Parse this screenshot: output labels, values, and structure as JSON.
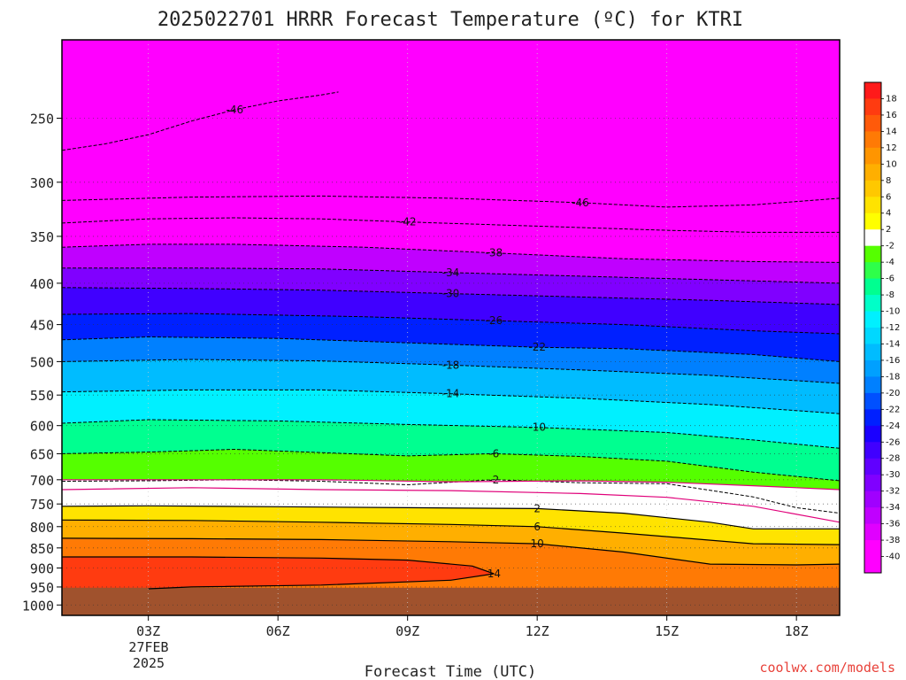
{
  "chart_data": {
    "type": "heatmap",
    "title": "2025022701 HRRR Forecast Temperature (ºC) for KTRI",
    "xlabel": "Forecast Time (UTC)",
    "ylabel": "",
    "x_ticks": [
      "03Z",
      "06Z",
      "09Z",
      "12Z",
      "15Z",
      "18Z"
    ],
    "x_tick_hours": [
      3,
      6,
      9,
      12,
      15,
      18
    ],
    "x_range_hours": [
      1,
      19
    ],
    "date_label": [
      "27FEB",
      "2025"
    ],
    "y_ticks": [
      250,
      300,
      350,
      400,
      450,
      500,
      550,
      600,
      650,
      700,
      750,
      800,
      850,
      900,
      950,
      1000
    ],
    "y_range_hPa": [
      200,
      1030
    ],
    "y_scale": "log",
    "grid": "dotted",
    "colorbar_levels": [
      18,
      16,
      14,
      12,
      10,
      8,
      6,
      4,
      2,
      -2,
      -4,
      -6,
      -8,
      -10,
      -12,
      -14,
      -16,
      -18,
      -20,
      -22,
      -24,
      -26,
      -28,
      -30,
      -32,
      -34,
      -36,
      -38,
      -40
    ],
    "colorbar_colors": [
      "#ff1a1a",
      "#ff3b10",
      "#ff5a0a",
      "#ff7a05",
      "#ff9500",
      "#ffaf00",
      "#ffc800",
      "#ffe300",
      "#ffff00",
      "#ffffff",
      "#55ff00",
      "#2eff4a",
      "#00ff90",
      "#00ffc8",
      "#00f0ff",
      "#00d8ff",
      "#00bcff",
      "#00a0ff",
      "#0080ff",
      "#0050ff",
      "#0020ff",
      "#1a00ff",
      "#4000ff",
      "#6000ff",
      "#8000ff",
      "#a000ff",
      "#c000ff",
      "#e000ff",
      "#ff00ff"
    ],
    "isotherms": [
      {
        "value": -46,
        "label": "46",
        "points": [
          [
            1,
            274
          ],
          [
            2,
            269
          ],
          [
            3,
            262
          ],
          [
            4,
            252
          ],
          [
            5,
            244
          ],
          [
            6,
            238
          ],
          [
            7,
            234
          ],
          [
            7.4,
            232
          ]
        ]
      },
      {
        "value": -46,
        "label": "46",
        "points": [
          [
            1,
            316
          ],
          [
            4,
            313
          ],
          [
            7,
            312
          ],
          [
            10,
            314
          ],
          [
            13,
            318
          ],
          [
            15,
            322
          ],
          [
            17,
            320
          ],
          [
            19,
            314
          ]
        ]
      },
      {
        "value": -42,
        "label": "42",
        "points": [
          [
            1,
            337
          ],
          [
            3,
            333
          ],
          [
            5,
            332
          ],
          [
            7,
            333
          ],
          [
            9,
            336
          ],
          [
            12,
            340
          ],
          [
            15,
            344
          ],
          [
            17,
            346
          ],
          [
            19,
            346
          ]
        ]
      },
      {
        "value": -38,
        "label": "38",
        "points": [
          [
            1,
            361
          ],
          [
            3,
            358
          ],
          [
            5,
            358
          ],
          [
            8,
            361
          ],
          [
            11,
            367
          ],
          [
            14,
            373
          ],
          [
            17,
            376
          ],
          [
            19,
            377
          ]
        ]
      },
      {
        "value": -34,
        "label": "34",
        "points": [
          [
            1,
            383
          ],
          [
            4,
            383
          ],
          [
            7,
            384
          ],
          [
            10,
            388
          ],
          [
            13,
            392
          ],
          [
            16,
            396
          ],
          [
            19,
            400
          ]
        ]
      },
      {
        "value": -30,
        "label": "30",
        "points": [
          [
            1,
            405
          ],
          [
            4,
            406
          ],
          [
            7,
            408
          ],
          [
            10,
            412
          ],
          [
            13,
            416
          ],
          [
            16,
            420
          ],
          [
            19,
            425
          ]
        ]
      },
      {
        "value": -26,
        "label": "26",
        "points": [
          [
            1,
            437
          ],
          [
            4,
            436
          ],
          [
            8,
            440
          ],
          [
            11,
            445
          ],
          [
            14,
            450
          ],
          [
            17,
            458
          ],
          [
            19,
            462
          ]
        ]
      },
      {
        "value": -22,
        "label": "22",
        "points": [
          [
            1,
            470
          ],
          [
            3,
            466
          ],
          [
            6,
            468
          ],
          [
            9,
            474
          ],
          [
            12,
            480
          ],
          [
            14,
            482
          ],
          [
            17,
            490
          ],
          [
            19,
            500
          ]
        ]
      },
      {
        "value": -18,
        "label": "18",
        "points": [
          [
            1,
            500
          ],
          [
            4,
            497
          ],
          [
            7,
            499
          ],
          [
            10,
            505
          ],
          [
            13,
            512
          ],
          [
            16,
            520
          ],
          [
            19,
            532
          ]
        ]
      },
      {
        "value": -14,
        "label": "14",
        "points": [
          [
            1,
            545
          ],
          [
            4,
            542
          ],
          [
            7,
            542
          ],
          [
            10,
            548
          ],
          [
            13,
            555
          ],
          [
            16,
            565
          ],
          [
            19,
            580
          ]
        ]
      },
      {
        "value": -10,
        "label": "10",
        "points": [
          [
            1,
            596
          ],
          [
            3,
            590
          ],
          [
            6,
            592
          ],
          [
            9,
            598
          ],
          [
            12,
            603
          ],
          [
            15,
            612
          ],
          [
            17,
            625
          ],
          [
            19,
            640
          ]
        ]
      },
      {
        "value": -6,
        "label": "6",
        "points": [
          [
            1,
            650
          ],
          [
            3,
            647
          ],
          [
            5,
            642
          ],
          [
            7,
            648
          ],
          [
            9,
            654
          ],
          [
            11,
            650
          ],
          [
            13,
            655
          ],
          [
            15,
            664
          ],
          [
            17,
            685
          ],
          [
            19,
            702
          ]
        ]
      },
      {
        "value": -2,
        "label": "2",
        "points": [
          [
            1,
            703
          ],
          [
            3,
            702
          ],
          [
            5,
            700
          ],
          [
            7,
            703
          ],
          [
            9,
            710
          ],
          [
            11,
            700
          ],
          [
            13,
            706
          ],
          [
            15,
            708
          ],
          [
            17,
            735
          ],
          [
            18,
            758
          ],
          [
            19,
            770
          ]
        ]
      },
      {
        "value": 2,
        "label": "2",
        "points": [
          [
            1,
            755
          ],
          [
            3,
            754
          ],
          [
            6,
            756
          ],
          [
            9,
            758
          ],
          [
            12,
            760
          ],
          [
            14,
            770
          ],
          [
            16,
            790
          ],
          [
            17,
            805
          ],
          [
            19,
            805
          ]
        ]
      },
      {
        "value": 6,
        "label": "6",
        "points": [
          [
            1,
            785
          ],
          [
            4,
            786
          ],
          [
            7,
            790
          ],
          [
            10,
            795
          ],
          [
            12,
            800
          ],
          [
            14,
            815
          ],
          [
            17,
            840
          ],
          [
            19,
            842
          ]
        ]
      },
      {
        "value": 10,
        "label": "10",
        "points": [
          [
            1,
            827
          ],
          [
            4,
            828
          ],
          [
            7,
            830
          ],
          [
            10,
            835
          ],
          [
            12,
            840
          ],
          [
            14,
            860
          ],
          [
            16,
            890
          ],
          [
            18,
            892
          ],
          [
            19,
            890
          ]
        ]
      },
      {
        "value": 14,
        "label": "14",
        "points": [
          [
            1,
            872
          ],
          [
            4,
            872
          ],
          [
            7,
            875
          ],
          [
            9,
            880
          ],
          [
            10.5,
            895
          ],
          [
            11,
            915
          ],
          [
            10,
            932
          ],
          [
            7,
            945
          ],
          [
            4,
            950
          ],
          [
            3,
            955
          ]
        ]
      }
    ],
    "freezing_lines": [
      {
        "value": 0,
        "points": [
          [
            1,
            720
          ],
          [
            4,
            716
          ],
          [
            7,
            720
          ],
          [
            10,
            722
          ],
          [
            13,
            728
          ],
          [
            15,
            736
          ],
          [
            17,
            755
          ],
          [
            19,
            790
          ]
        ]
      },
      {
        "value": 0,
        "points": [
          [
            1,
            700
          ],
          [
            4,
            700
          ],
          [
            7,
            700
          ],
          [
            10,
            704
          ],
          [
            13,
            702
          ],
          [
            15,
            705
          ],
          [
            17,
            712
          ],
          [
            19,
            720
          ]
        ]
      }
    ],
    "ground_hPa": 952
  },
  "credit": "coolwx.com/models"
}
